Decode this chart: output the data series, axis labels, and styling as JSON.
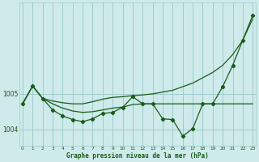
{
  "xlabel": "Graphe pression niveau de la mer (hPa)",
  "bg_color": "#ceeaea",
  "grid_color": "#a0cccc",
  "line_color": "#1a5c1a",
  "x": [
    0,
    1,
    2,
    3,
    4,
    5,
    6,
    7,
    8,
    9,
    10,
    11,
    12,
    13,
    14,
    15,
    16,
    17,
    18,
    19,
    20,
    21,
    22,
    23
  ],
  "series_smooth": [
    1004.72,
    1005.22,
    1004.87,
    1004.72,
    1004.6,
    1004.52,
    1004.48,
    1004.5,
    1004.55,
    1004.6,
    1004.63,
    1004.7,
    1004.72,
    1004.72,
    1004.72,
    1004.72,
    1004.72,
    1004.72,
    1004.72,
    1004.72,
    1004.72,
    1004.72,
    1004.72,
    1004.72
  ],
  "series_trend": [
    1004.72,
    1005.22,
    1004.87,
    1004.8,
    1004.75,
    1004.72,
    1004.72,
    1004.78,
    1004.85,
    1004.9,
    1004.92,
    1004.95,
    1004.97,
    1005.0,
    1005.05,
    1005.1,
    1005.2,
    1005.3,
    1005.45,
    1005.6,
    1005.8,
    1006.1,
    1006.5,
    1007.1
  ],
  "series_jagged": [
    1004.72,
    1005.22,
    1004.87,
    1004.55,
    1004.38,
    1004.28,
    1004.22,
    1004.3,
    1004.45,
    1004.48,
    1004.62,
    1004.92,
    1004.72,
    1004.72,
    1004.3,
    1004.28,
    1003.82,
    1004.02,
    1004.72,
    1004.72,
    1005.2,
    1005.8,
    1006.5,
    1007.2
  ],
  "ylim": [
    1003.55,
    1007.55
  ],
  "yticks": [
    1004.0,
    1005.0
  ],
  "xticks": [
    0,
    1,
    2,
    3,
    4,
    5,
    6,
    7,
    8,
    9,
    10,
    11,
    12,
    13,
    14,
    15,
    16,
    17,
    18,
    19,
    20,
    21,
    22,
    23
  ]
}
